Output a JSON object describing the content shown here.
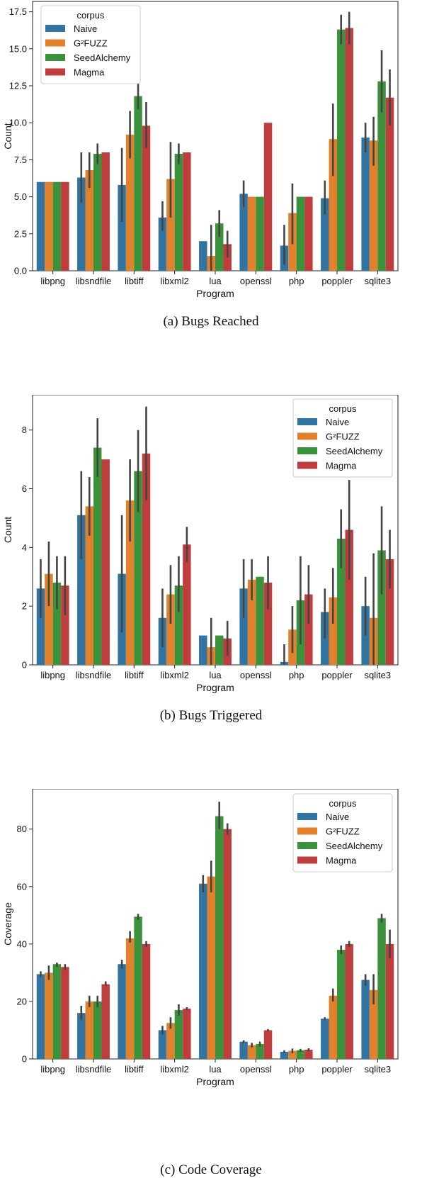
{
  "colors": {
    "Naive": "#3274a1",
    "G²FUZZ": "#e1812c",
    "SeedAlchemy": "#3a923a",
    "Magma": "#c03d3e",
    "errorbar": "#444444"
  },
  "chart_data": [
    {
      "type": "bar",
      "caption": "(a) Bugs Reached",
      "xlabel": "Program",
      "ylabel": "Count",
      "ylim": [
        0,
        18.2
      ],
      "yticks": [
        0.0,
        2.5,
        5.0,
        7.5,
        10.0,
        12.5,
        15.0,
        17.5
      ],
      "tick_decimals": 1,
      "legend_title": "corpus",
      "legend_position": "top-left",
      "categories": [
        "libpng",
        "libsndfile",
        "libtiff",
        "libxml2",
        "lua",
        "openssl",
        "php",
        "poppler",
        "sqlite3"
      ],
      "series": [
        {
          "name": "Naive",
          "values": [
            6.0,
            6.3,
            5.8,
            3.6,
            2.0,
            5.2,
            1.7,
            4.9,
            9.0
          ],
          "lower": [
            6.0,
            4.6,
            3.3,
            2.7,
            2.0,
            4.3,
            0.4,
            3.8,
            8.0
          ],
          "upper": [
            6.0,
            8.0,
            8.3,
            4.7,
            2.0,
            6.1,
            3.1,
            6.1,
            10.0
          ]
        },
        {
          "name": "G²FUZZ",
          "values": [
            6.0,
            6.8,
            9.2,
            6.2,
            1.0,
            5.0,
            3.9,
            8.9,
            8.8
          ],
          "lower": [
            6.0,
            5.6,
            7.6,
            3.6,
            0.0,
            5.0,
            1.8,
            6.4,
            7.1
          ],
          "upper": [
            6.0,
            8.0,
            10.8,
            8.7,
            3.1,
            5.0,
            5.9,
            11.3,
            10.4
          ]
        },
        {
          "name": "SeedAlchemy",
          "values": [
            6.0,
            7.9,
            11.8,
            7.9,
            3.2,
            5.0,
            5.0,
            16.3,
            12.8
          ],
          "lower": [
            6.0,
            7.2,
            10.9,
            7.2,
            2.3,
            5.0,
            5.0,
            15.3,
            10.7
          ],
          "upper": [
            6.0,
            8.6,
            12.7,
            8.6,
            4.1,
            5.0,
            5.0,
            17.3,
            14.9
          ]
        },
        {
          "name": "Magma",
          "values": [
            6.0,
            8.0,
            9.8,
            8.0,
            1.8,
            10.0,
            5.0,
            16.4,
            11.7
          ],
          "lower": [
            6.0,
            8.0,
            8.3,
            8.0,
            0.9,
            10.0,
            5.0,
            15.3,
            9.8
          ],
          "upper": [
            6.0,
            8.0,
            11.4,
            8.0,
            2.7,
            10.0,
            5.0,
            17.5,
            13.6
          ]
        }
      ]
    },
    {
      "type": "bar",
      "caption": "(b) Bugs Triggered",
      "xlabel": "Program",
      "ylabel": "Count",
      "ylim": [
        0,
        9.2
      ],
      "yticks": [
        0,
        2,
        4,
        6,
        8
      ],
      "tick_decimals": 0,
      "legend_title": "corpus",
      "legend_position": "top-right",
      "categories": [
        "libpng",
        "libsndfile",
        "libtiff",
        "libxml2",
        "lua",
        "openssl",
        "php",
        "poppler",
        "sqlite3"
      ],
      "series": [
        {
          "name": "Naive",
          "values": [
            2.6,
            5.1,
            3.1,
            1.6,
            1.0,
            2.6,
            0.1,
            1.8,
            2.0
          ],
          "lower": [
            1.6,
            3.6,
            1.1,
            0.6,
            1.0,
            1.6,
            0.0,
            0.9,
            1.0
          ],
          "upper": [
            3.6,
            6.6,
            5.1,
            2.6,
            1.0,
            3.6,
            0.7,
            2.6,
            3.0
          ]
        },
        {
          "name": "G²FUZZ",
          "values": [
            3.1,
            5.4,
            5.6,
            2.4,
            0.6,
            2.9,
            1.2,
            2.3,
            1.6
          ],
          "lower": [
            2.0,
            4.4,
            4.2,
            1.4,
            0.0,
            2.2,
            0.4,
            1.4,
            0.0
          ],
          "upper": [
            4.2,
            6.4,
            7.0,
            3.4,
            1.6,
            3.6,
            2.0,
            3.3,
            3.8
          ]
        },
        {
          "name": "SeedAlchemy",
          "values": [
            2.8,
            7.4,
            6.6,
            2.7,
            1.0,
            3.0,
            2.2,
            4.3,
            3.9
          ],
          "lower": [
            1.9,
            6.4,
            5.2,
            1.8,
            1.0,
            3.0,
            0.7,
            3.3,
            2.4
          ],
          "upper": [
            3.7,
            8.4,
            8.0,
            3.7,
            1.0,
            3.0,
            3.7,
            5.3,
            5.4
          ]
        },
        {
          "name": "Magma",
          "values": [
            2.7,
            7.0,
            7.2,
            4.1,
            0.9,
            2.8,
            2.4,
            4.6,
            3.6
          ],
          "lower": [
            1.7,
            7.0,
            5.6,
            3.5,
            0.3,
            1.9,
            1.4,
            2.9,
            2.6
          ],
          "upper": [
            3.7,
            7.0,
            8.8,
            4.7,
            1.5,
            3.7,
            3.4,
            6.3,
            4.6
          ]
        }
      ]
    },
    {
      "type": "bar",
      "caption": "(c) Code Coverage",
      "xlabel": "Program",
      "ylabel": "Coverage",
      "ylim": [
        0,
        94
      ],
      "yticks": [
        0,
        20,
        40,
        60,
        80
      ],
      "tick_decimals": 0,
      "legend_title": "corpus",
      "legend_position": "top-right",
      "categories": [
        "libpng",
        "libsndfile",
        "libtiff",
        "libxml2",
        "lua",
        "openssl",
        "php",
        "poppler",
        "sqlite3"
      ],
      "series": [
        {
          "name": "Naive",
          "values": [
            29.5,
            16.0,
            33.0,
            10.0,
            61.0,
            6.0,
            2.5,
            14.0,
            27.5
          ],
          "lower": [
            28.5,
            13.5,
            31.5,
            8.5,
            58.0,
            5.5,
            2.0,
            13.5,
            25.5
          ],
          "upper": [
            30.5,
            18.5,
            34.5,
            11.5,
            64.0,
            6.5,
            3.0,
            14.5,
            29.5
          ]
        },
        {
          "name": "G²FUZZ",
          "values": [
            30.0,
            20.0,
            42.0,
            12.5,
            63.5,
            4.8,
            2.8,
            22.0,
            24.0
          ],
          "lower": [
            27.5,
            18.0,
            40.5,
            10.5,
            58.0,
            4.0,
            2.0,
            20.0,
            19.0
          ],
          "upper": [
            32.5,
            22.0,
            44.5,
            14.5,
            69.0,
            5.6,
            3.6,
            24.5,
            29.5
          ]
        },
        {
          "name": "SeedAlchemy",
          "values": [
            33.0,
            20.0,
            49.5,
            17.0,
            84.5,
            5.2,
            3.0,
            38.0,
            49.0
          ],
          "lower": [
            32.0,
            18.0,
            48.5,
            15.0,
            80.0,
            4.4,
            2.5,
            36.5,
            47.5
          ],
          "upper": [
            33.5,
            22.0,
            50.5,
            19.0,
            89.5,
            6.0,
            3.5,
            39.5,
            50.5
          ]
        },
        {
          "name": "Magma",
          "values": [
            32.0,
            26.0,
            40.0,
            17.5,
            80.0,
            10.0,
            3.2,
            40.0,
            40.0
          ],
          "lower": [
            31.0,
            25.5,
            39.0,
            17.0,
            78.0,
            9.6,
            2.7,
            39.0,
            35.0
          ],
          "upper": [
            33.0,
            27.0,
            41.0,
            18.0,
            82.0,
            10.4,
            3.7,
            41.0,
            45.0
          ]
        }
      ]
    }
  ]
}
